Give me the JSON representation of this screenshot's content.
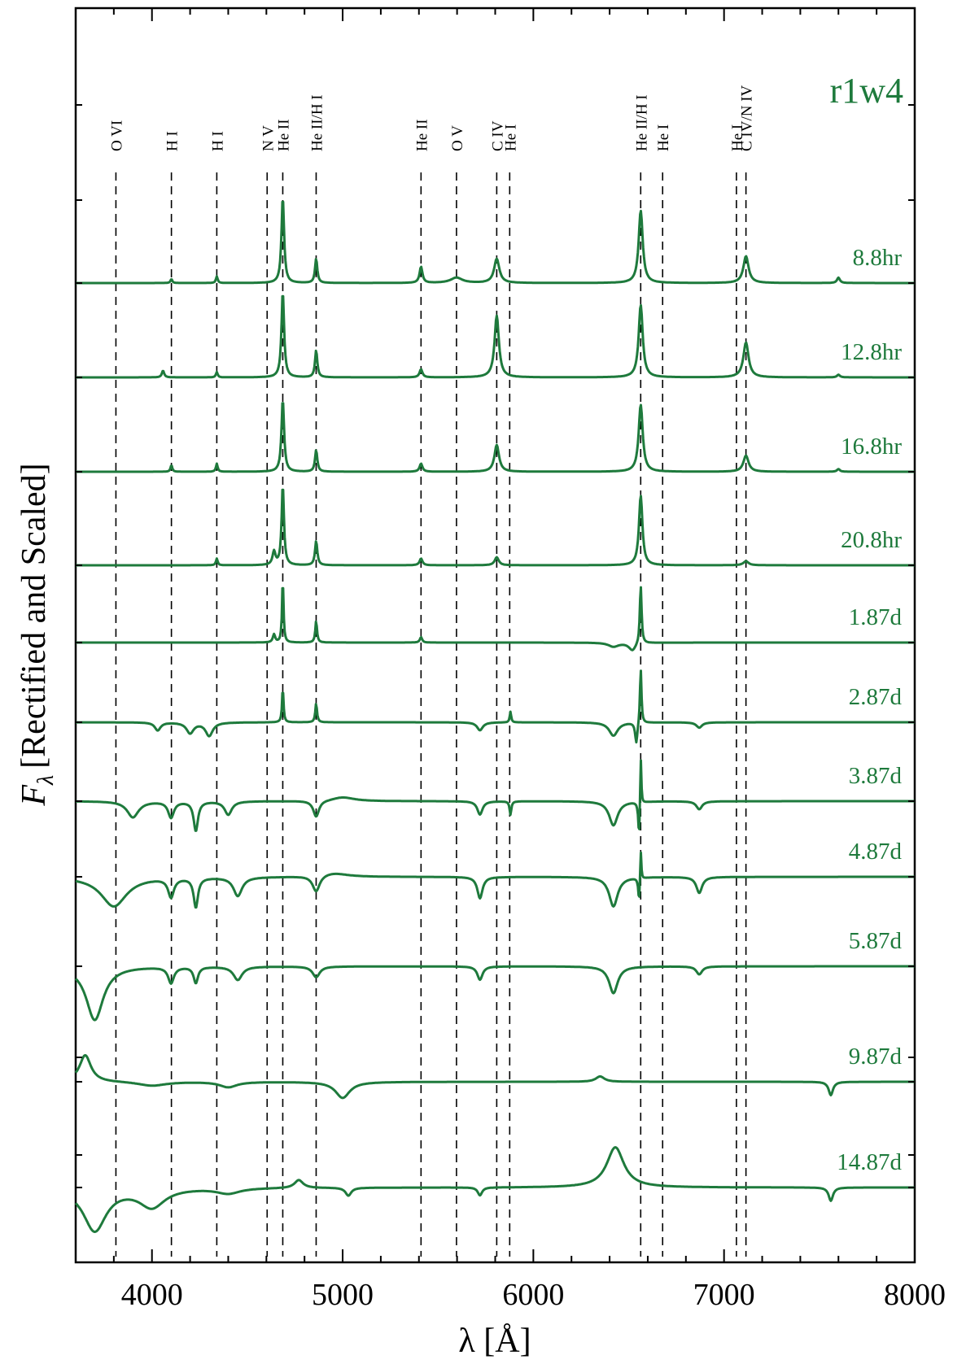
{
  "chart_data": {
    "type": "line",
    "model": "r1w4",
    "xlabel": "λ [Å]",
    "ylabel": "Fλ [Rectified and Scaled]",
    "ylabel_symbol": "F",
    "ylabel_subscript": "λ",
    "ylabel_text": "[Rectified and Scaled]",
    "xlim": [
      3600,
      8000
    ],
    "x_ticks": [
      4000,
      5000,
      6000,
      7000,
      8000
    ],
    "color": "#1e7a3c",
    "line_markers": [
      {
        "label": "O VI",
        "x": 3811
      },
      {
        "label": "H I",
        "x": 4102
      },
      {
        "label": "H I",
        "x": 4340
      },
      {
        "label": "N V",
        "x": 4604
      },
      {
        "label": "He II",
        "x": 4686
      },
      {
        "label": "He II/H I",
        "x": 4861
      },
      {
        "label": "He II",
        "x": 5411
      },
      {
        "label": "O V",
        "x": 5597
      },
      {
        "label": "C IV",
        "x": 5808
      },
      {
        "label": "He I",
        "x": 5876
      },
      {
        "label": "He II/H I",
        "x": 6563
      },
      {
        "label": "He I",
        "x": 6678
      },
      {
        "label": "He I",
        "x": 7065
      },
      {
        "label": "C IV/N IV",
        "x": 7115
      }
    ],
    "series": [
      {
        "name": "8.8hr",
        "baseline": 0,
        "features": [
          [
            4686,
            3.2,
            9
          ],
          [
            4861,
            0.9,
            8
          ],
          [
            4340,
            0.25,
            6
          ],
          [
            4102,
            0.15,
            6
          ],
          [
            5411,
            0.6,
            10
          ],
          [
            5808,
            0.9,
            18
          ],
          [
            6563,
            2.7,
            14
          ],
          [
            7115,
            1.0,
            18
          ],
          [
            5597,
            0.2,
            40
          ],
          [
            7600,
            0.2,
            10
          ]
        ]
      },
      {
        "name": "12.8hr",
        "baseline": 0,
        "features": [
          [
            4686,
            3.2,
            9
          ],
          [
            4861,
            1.0,
            8
          ],
          [
            4340,
            0.2,
            6
          ],
          [
            4058,
            0.25,
            8
          ],
          [
            5411,
            0.3,
            10
          ],
          [
            5808,
            2.3,
            15
          ],
          [
            6563,
            2.7,
            14
          ],
          [
            7115,
            1.3,
            18
          ],
          [
            7600,
            0.1,
            10
          ]
        ]
      },
      {
        "name": "16.8hr",
        "baseline": 0,
        "features": [
          [
            4686,
            2.7,
            9
          ],
          [
            4861,
            0.8,
            8
          ],
          [
            4340,
            0.3,
            6
          ],
          [
            4102,
            0.25,
            6
          ],
          [
            5411,
            0.3,
            10
          ],
          [
            5808,
            1.0,
            16
          ],
          [
            6563,
            2.5,
            14
          ],
          [
            7115,
            0.6,
            18
          ],
          [
            7600,
            0.1,
            10
          ]
        ]
      },
      {
        "name": "20.8hr",
        "baseline": 0,
        "features": [
          [
            4686,
            3.0,
            8
          ],
          [
            4640,
            0.5,
            10
          ],
          [
            4861,
            0.9,
            8
          ],
          [
            4340,
            0.25,
            6
          ],
          [
            5411,
            0.25,
            10
          ],
          [
            5808,
            0.3,
            14
          ],
          [
            6563,
            2.6,
            12
          ],
          [
            7115,
            0.15,
            18
          ]
        ]
      },
      {
        "name": "1.87d",
        "baseline": 0,
        "features": [
          [
            4686,
            2.4,
            5
          ],
          [
            4861,
            0.8,
            6
          ],
          [
            6563,
            2.2,
            6
          ],
          [
            4640,
            0.3,
            8
          ],
          [
            6520,
            -0.3,
            25
          ],
          [
            6420,
            -0.15,
            35
          ],
          [
            5411,
            0.2,
            8
          ]
        ]
      },
      {
        "name": "2.87d",
        "baseline": 0,
        "features": [
          [
            4686,
            1.3,
            5
          ],
          [
            4861,
            0.7,
            6
          ],
          [
            6563,
            2.1,
            5
          ],
          [
            6540,
            -0.8,
            8
          ],
          [
            6420,
            -0.5,
            30
          ],
          [
            4300,
            -0.5,
            25
          ],
          [
            4200,
            -0.4,
            25
          ],
          [
            4030,
            -0.3,
            20
          ],
          [
            5880,
            0.4,
            5
          ],
          [
            5720,
            -0.3,
            20
          ],
          [
            6870,
            -0.2,
            20
          ]
        ]
      },
      {
        "name": "3.87d",
        "baseline": 0,
        "features": [
          [
            6563,
            2.1,
            4
          ],
          [
            6555,
            -1.5,
            6
          ],
          [
            6420,
            -0.9,
            30
          ],
          [
            4230,
            -1.1,
            15
          ],
          [
            4100,
            -0.6,
            20
          ],
          [
            3900,
            -0.6,
            40
          ],
          [
            4400,
            -0.5,
            25
          ],
          [
            4861,
            -0.6,
            20
          ],
          [
            5880,
            -0.5,
            6
          ],
          [
            5720,
            -0.5,
            18
          ],
          [
            5000,
            0.15,
            80
          ],
          [
            6870,
            -0.3,
            20
          ]
        ]
      },
      {
        "name": "4.87d",
        "baseline": 0,
        "features": [
          [
            6563,
            1.3,
            4
          ],
          [
            6555,
            -1.0,
            6
          ],
          [
            6420,
            -1.1,
            30
          ],
          [
            4230,
            -1.1,
            15
          ],
          [
            4100,
            -0.7,
            20
          ],
          [
            3800,
            -1.1,
            90
          ],
          [
            4450,
            -0.7,
            30
          ],
          [
            4861,
            -0.6,
            25
          ],
          [
            5720,
            -0.8,
            18
          ],
          [
            4950,
            0.15,
            100
          ],
          [
            6870,
            -0.6,
            20
          ]
        ]
      },
      {
        "name": "5.87d",
        "baseline": 0,
        "features": [
          [
            6420,
            -1.0,
            30
          ],
          [
            4230,
            -0.6,
            15
          ],
          [
            4100,
            -0.6,
            20
          ],
          [
            3700,
            -2.0,
            60
          ],
          [
            4450,
            -0.5,
            30
          ],
          [
            4861,
            -0.4,
            25
          ],
          [
            5720,
            -0.5,
            18
          ],
          [
            6870,
            -0.3,
            20
          ]
        ]
      },
      {
        "name": "9.87d",
        "baseline": 0,
        "features": [
          [
            3650,
            1.0,
            40
          ],
          [
            4000,
            -0.15,
            100
          ],
          [
            5000,
            -0.6,
            50
          ],
          [
            4400,
            -0.2,
            60
          ],
          [
            7560,
            -0.5,
            15
          ],
          [
            6350,
            0.2,
            30
          ]
        ]
      },
      {
        "name": "14.87d",
        "baseline": 0,
        "features": [
          [
            6430,
            1.5,
            60
          ],
          [
            3700,
            -1.6,
            80
          ],
          [
            4000,
            -0.7,
            90
          ],
          [
            4770,
            0.3,
            30
          ],
          [
            5030,
            -0.3,
            20
          ],
          [
            5720,
            -0.3,
            15
          ],
          [
            7560,
            -0.5,
            15
          ],
          [
            4400,
            -0.2,
            80
          ]
        ]
      }
    ]
  }
}
